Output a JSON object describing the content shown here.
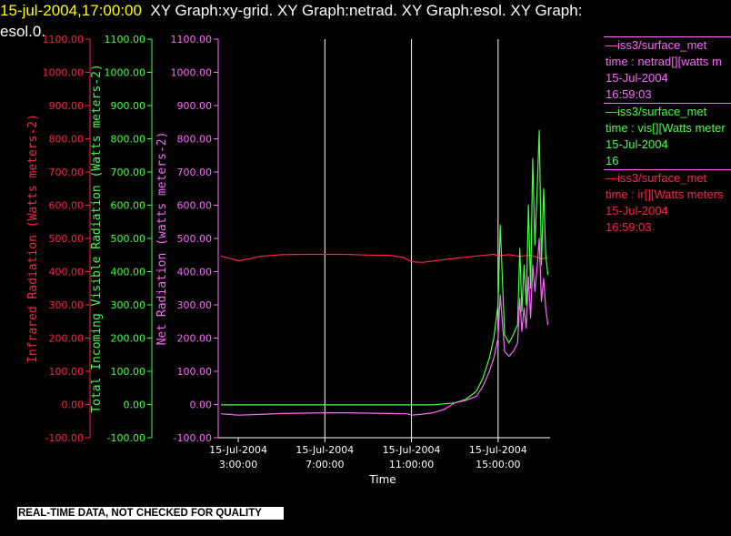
{
  "title": {
    "time_label": "15-jul-2004,17:00:00",
    "graphs_line1": "XY Graph:xy-grid.  XY Graph:netrad.  XY Graph:esol.  XY Graph:",
    "graphs_line2": "esol.0."
  },
  "legend": [
    {
      "source": "—iss3/surface_met",
      "variable": "time : netrad[][watts m",
      "date": "15-Jul-2004",
      "time": "16:59:03",
      "color": "#ff66ff"
    },
    {
      "source": "—iss3/surface_met",
      "variable": "time : vis[][Watts meter",
      "date": "15-Jul-2004",
      "time": "16",
      "color": "#44ff44"
    },
    {
      "source": "—iss3/surface_met",
      "variable": "time : ir[][Watts meters",
      "date": "15-Jul-2004",
      "time": "16:59:03",
      "color": "#ff2244"
    }
  ],
  "disclaimer": "REAL-TIME DATA, NOT CHECKED FOR QUALITY",
  "colors": {
    "ir": "#ff2244",
    "vis": "#44ff44",
    "netrad": "#ff66ff",
    "grid": "#ffffff",
    "axis": "#ffffff"
  },
  "chart_data": {
    "type": "line",
    "xlabel": "Time",
    "x_ticks": [
      {
        "hour": 3,
        "date": "15-Jul-2004",
        "time": "3:00:00"
      },
      {
        "hour": 7,
        "date": "15-Jul-2004",
        "time": "7:00:00"
      },
      {
        "hour": 11,
        "date": "15-Jul-2004",
        "time": "11:00:00"
      },
      {
        "hour": 15,
        "date": "15-Jul-2004",
        "time": "15:00:00"
      }
    ],
    "xlim": [
      2.2,
      17.4
    ],
    "grid_lines_x": [
      7,
      11,
      15
    ],
    "axes": [
      {
        "id": "ir",
        "label": "Infrared Radiation (Watts meters-2)",
        "color": "#ff2244",
        "ylim": [
          -100,
          1100
        ],
        "ticks": [
          "-100.00",
          "0.00",
          "100.00",
          "200.00",
          "300.00",
          "400.00",
          "500.00",
          "600.00",
          "700.00",
          "800.00",
          "900.00",
          "1000.00",
          "1100.00"
        ]
      },
      {
        "id": "vis",
        "label": "Total Incoming Visible Radiation (Watts meters-2)",
        "color": "#44ff44",
        "ylim": [
          -100,
          1100
        ],
        "ticks": [
          "-100.00",
          "0.00",
          "100.00",
          "200.00",
          "300.00",
          "400.00",
          "500.00",
          "600.00",
          "700.00",
          "800.00",
          "900.00",
          "1000.00",
          "1100.00"
        ]
      },
      {
        "id": "netrad",
        "label": "Net Radiation (watts meters-2)",
        "color": "#ff66ff",
        "ylim": [
          -100,
          1100
        ],
        "ticks": [
          "-100.00",
          "0.00",
          "100.00",
          "200.00",
          "300.00",
          "400.00",
          "500.00",
          "600.00",
          "700.00",
          "800.00",
          "900.00",
          "1000.00",
          "1100.00"
        ]
      }
    ],
    "series": [
      {
        "name": "ir",
        "axis": "ir",
        "color": "#ff2244",
        "x": [
          2.2,
          2.6,
          3.0,
          3.5,
          4.0,
          5.0,
          6.0,
          7.0,
          8.0,
          9.0,
          10.0,
          10.6,
          11.0,
          11.5,
          12.0,
          13.0,
          14.0,
          14.8,
          15.0,
          15.5,
          16.0,
          16.5,
          17.0,
          17.3
        ],
        "y": [
          447,
          440,
          433,
          438,
          446,
          451,
          452,
          452,
          452,
          450,
          449,
          443,
          430,
          428,
          432,
          440,
          447,
          452,
          448,
          451,
          446,
          450,
          438,
          442
        ]
      },
      {
        "name": "vis",
        "axis": "vis",
        "color": "#44ff44",
        "x": [
          2.2,
          4.0,
          6.0,
          8.0,
          10.0,
          12.0,
          13.0,
          13.5,
          14.0,
          14.3,
          14.6,
          14.8,
          15.0,
          15.1,
          15.3,
          15.5,
          15.7,
          15.9,
          16.0,
          16.1,
          16.2,
          16.3,
          16.4,
          16.5,
          16.6,
          16.7,
          16.8,
          16.9,
          17.0,
          17.1,
          17.2,
          17.3
        ],
        "y": [
          -1,
          -1,
          -1,
          -1,
          -1,
          -1,
          5,
          15,
          40,
          80,
          140,
          200,
          300,
          540,
          210,
          185,
          210,
          240,
          470,
          280,
          420,
          300,
          600,
          350,
          740,
          480,
          640,
          825,
          420,
          650,
          450,
          390
        ]
      },
      {
        "name": "netrad",
        "axis": "netrad",
        "color": "#ff66ff",
        "x": [
          2.2,
          3.0,
          4.0,
          5.0,
          6.0,
          7.0,
          8.0,
          9.0,
          10.0,
          10.8,
          11.0,
          11.4,
          12.0,
          12.5,
          13.0,
          13.5,
          14.0,
          14.3,
          14.6,
          14.8,
          15.0,
          15.1,
          15.3,
          15.5,
          15.7,
          15.9,
          16.0,
          16.1,
          16.2,
          16.3,
          16.4,
          16.5,
          16.6,
          16.7,
          16.8,
          16.9,
          17.0,
          17.1,
          17.2,
          17.3
        ],
        "y": [
          -28,
          -32,
          -30,
          -27,
          -26,
          -25,
          -25,
          -26,
          -27,
          -28,
          -32,
          -30,
          -25,
          -15,
          5,
          12,
          25,
          55,
          100,
          140,
          200,
          330,
          160,
          145,
          160,
          185,
          320,
          220,
          290,
          230,
          385,
          260,
          420,
          340,
          410,
          500,
          310,
          380,
          290,
          240
        ]
      }
    ]
  }
}
